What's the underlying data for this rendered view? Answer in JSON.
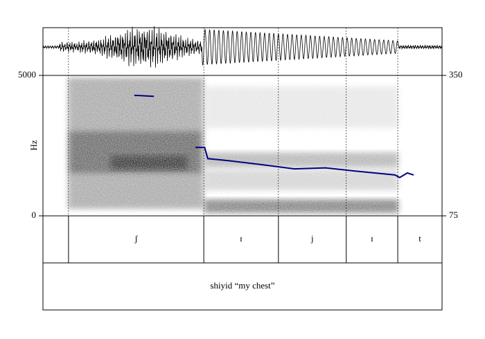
{
  "chart_data": {
    "type": "spectrogram",
    "y_label": "Hz",
    "xlim": [
      0,
      1
    ],
    "ylim": [
      0,
      5000
    ],
    "yticks": [
      0,
      5000
    ],
    "y2lim": [
      75,
      350
    ],
    "y2ticks": [
      75,
      350
    ],
    "series": [
      {
        "color": "#000080",
        "axis": "y2",
        "x": [
          0.229,
          0.278,
          0.33,
          0.382,
          0.405,
          0.413,
          0.465,
          0.552,
          0.63,
          0.708,
          0.778,
          0.882,
          0.894,
          0.913,
          0.929
        ],
        "values": [
          311,
          309,
          null,
          209,
          209,
          187,
          183,
          175,
          167,
          169,
          163,
          155,
          150,
          159,
          155
        ]
      }
    ],
    "tiers": [
      {
        "boundaries": [
          0.064,
          0.403,
          0.59,
          0.76,
          0.889
        ],
        "labels": [
          "ʃ",
          "ɪ",
          "j",
          "ɪ",
          "t"
        ]
      },
      {
        "boundaries": [],
        "labels": [
          "shiyid “my chest”"
        ]
      }
    ]
  }
}
